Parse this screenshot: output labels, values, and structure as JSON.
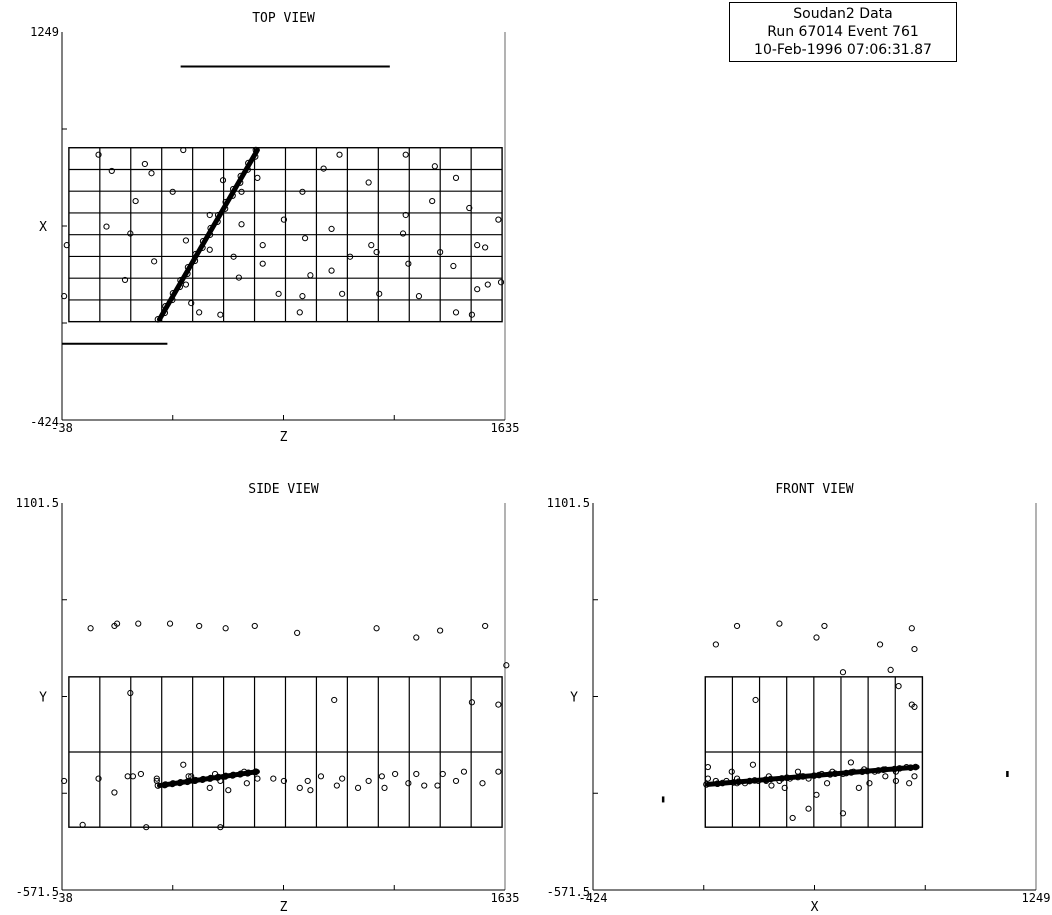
{
  "info": {
    "line1": "Soudan2 Data",
    "line2": "Run 67014 Event 761",
    "line3": "10-Feb-1996 07:06:31.87"
  },
  "colors": {
    "ink": "#000000",
    "background": "#ffffff"
  },
  "chart_data": [
    {
      "type": "scatter",
      "title": "TOP VIEW",
      "xlabel": "Z",
      "ylabel": "X",
      "xlim": [
        -38,
        1635
      ],
      "ylim": [
        -424,
        1249
      ],
      "x_tick_labels": [
        "-38",
        "1635"
      ],
      "y_tick_labels": [
        "-424",
        "1249"
      ],
      "grid": "detector modules 14 columns x 8 rows",
      "track": {
        "from": [
          330,
          10
        ],
        "to": [
          700,
          740
        ]
      },
      "scale_bars": [
        {
          "from": [
            410,
            1100
          ],
          "to": [
            1200,
            1100
          ]
        },
        {
          "from": [
            -38,
            -95
          ],
          "to": [
            360,
            -95
          ]
        }
      ],
      "hits": [
        [
          -30,
          110
        ],
        [
          100,
          720
        ],
        [
          150,
          650
        ],
        [
          275,
          680
        ],
        [
          300,
          640
        ],
        [
          380,
          560
        ],
        [
          240,
          520
        ],
        [
          130,
          410
        ],
        [
          220,
          380
        ],
        [
          430,
          350
        ],
        [
          520,
          310
        ],
        [
          610,
          280
        ],
        [
          720,
          330
        ],
        [
          880,
          360
        ],
        [
          980,
          400
        ],
        [
          1130,
          330
        ],
        [
          1250,
          380
        ],
        [
          1390,
          300
        ],
        [
          1530,
          330
        ],
        [
          1530,
          140
        ],
        [
          1570,
          160
        ],
        [
          1620,
          170
        ],
        [
          1500,
          490
        ],
        [
          1360,
          520
        ],
        [
          1260,
          460
        ],
        [
          1120,
          600
        ],
        [
          1010,
          720
        ],
        [
          1260,
          720
        ],
        [
          1370,
          670
        ],
        [
          1450,
          620
        ],
        [
          560,
          30
        ],
        [
          780,
          120
        ],
        [
          860,
          40
        ],
        [
          900,
          200
        ],
        [
          1020,
          120
        ],
        [
          1160,
          120
        ],
        [
          1310,
          110
        ],
        [
          1450,
          40
        ],
        [
          1510,
          30
        ],
        [
          950,
          660
        ],
        [
          870,
          560
        ],
        [
          800,
          440
        ],
        [
          640,
          420
        ],
        [
          570,
          610
        ],
        [
          520,
          460
        ],
        [
          630,
          190
        ],
        [
          720,
          250
        ],
        [
          1610,
          440
        ],
        [
          1560,
          320
        ],
        [
          1440,
          240
        ],
        [
          1270,
          250
        ],
        [
          1150,
          300
        ],
        [
          980,
          220
        ],
        [
          640,
          560
        ],
        [
          430,
          160
        ],
        [
          450,
          80
        ],
        [
          -20,
          330
        ],
        [
          200,
          180
        ],
        [
          310,
          260
        ],
        [
          870,
          110
        ],
        [
          1050,
          280
        ],
        [
          480,
          40
        ],
        [
          700,
          620
        ],
        [
          420,
          740
        ]
      ]
    },
    {
      "type": "scatter",
      "title": "SIDE VIEW",
      "xlabel": "Z",
      "ylabel": "Y",
      "xlim": [
        -38,
        1635
      ],
      "ylim": [
        -571.5,
        1101.5
      ],
      "x_tick_labels": [
        "-38",
        "1635"
      ],
      "y_tick_labels": [
        "-571.5",
        "1101.5"
      ],
      "grid": "detector modules 14 columns x 2 rows",
      "track": {
        "from": [
          330,
          -120
        ],
        "to": [
          700,
          -60
        ]
      },
      "hits": [
        [
          -30,
          -100
        ],
        [
          40,
          -290
        ],
        [
          160,
          -150
        ],
        [
          210,
          -80
        ],
        [
          220,
          280
        ],
        [
          230,
          -80
        ],
        [
          260,
          -70
        ],
        [
          320,
          -90
        ],
        [
          100,
          -90
        ],
        [
          440,
          -80
        ],
        [
          520,
          -130
        ],
        [
          560,
          -100
        ],
        [
          590,
          -140
        ],
        [
          660,
          -110
        ],
        [
          700,
          -90
        ],
        [
          760,
          -90
        ],
        [
          800,
          -100
        ],
        [
          860,
          -130
        ],
        [
          890,
          -100
        ],
        [
          940,
          -80
        ],
        [
          1020,
          -90
        ],
        [
          1080,
          -130
        ],
        [
          1120,
          -100
        ],
        [
          1170,
          -80
        ],
        [
          1220,
          -70
        ],
        [
          1270,
          -110
        ],
        [
          1330,
          -120
        ],
        [
          1400,
          -70
        ],
        [
          1450,
          -100
        ],
        [
          1480,
          -60
        ],
        [
          1550,
          -110
        ],
        [
          1610,
          -60
        ],
        [
          1610,
          230
        ],
        [
          1640,
          400
        ],
        [
          1560,
          570
        ],
        [
          1510,
          240
        ],
        [
          1300,
          520
        ],
        [
          1390,
          550
        ],
        [
          1150,
          560
        ],
        [
          990,
          250
        ],
        [
          850,
          540
        ],
        [
          690,
          570
        ],
        [
          580,
          560
        ],
        [
          480,
          570
        ],
        [
          370,
          580
        ],
        [
          250,
          580
        ],
        [
          160,
          570
        ],
        [
          70,
          560
        ],
        [
          170,
          580
        ],
        [
          420,
          -30
        ],
        [
          540,
          -70
        ],
        [
          650,
          -60
        ],
        [
          320,
          -100
        ],
        [
          900,
          -140
        ],
        [
          1180,
          -130
        ],
        [
          1300,
          -70
        ],
        [
          280,
          -300
        ],
        [
          560,
          -300
        ],
        [
          450,
          -80
        ],
        [
          1000,
          -120
        ],
        [
          1380,
          -120
        ]
      ]
    },
    {
      "type": "scatter",
      "title": "FRONT VIEW",
      "xlabel": "X",
      "ylabel": "Y",
      "xlim": [
        -424,
        1249
      ],
      "ylim": [
        -571.5,
        1101.5
      ],
      "x_tick_labels": [
        "-424",
        "1249"
      ],
      "y_tick_labels": [
        "-571.5",
        "1101.5"
      ],
      "grid": "detector modules 8 columns x 2 rows",
      "track": {
        "from": [
          10,
          -115
        ],
        "to": [
          800,
          -40
        ]
      },
      "markers": [
        [
          -160,
          -180
        ],
        [
          1140,
          -70
        ]
      ],
      "hits": [
        [
          10,
          -90
        ],
        [
          40,
          -100
        ],
        [
          80,
          -100
        ],
        [
          120,
          -90
        ],
        [
          150,
          -110
        ],
        [
          200,
          -100
        ],
        [
          240,
          -80
        ],
        [
          280,
          -100
        ],
        [
          320,
          -90
        ],
        [
          360,
          -80
        ],
        [
          390,
          -90
        ],
        [
          440,
          -70
        ],
        [
          480,
          -60
        ],
        [
          520,
          -70
        ],
        [
          560,
          -60
        ],
        [
          600,
          -50
        ],
        [
          640,
          -60
        ],
        [
          680,
          -50
        ],
        [
          720,
          -60
        ],
        [
          760,
          -40
        ],
        [
          790,
          -80
        ],
        [
          40,
          490
        ],
        [
          120,
          570
        ],
        [
          190,
          250
        ],
        [
          280,
          580
        ],
        [
          420,
          520
        ],
        [
          450,
          570
        ],
        [
          520,
          370
        ],
        [
          580,
          -130
        ],
        [
          660,
          490
        ],
        [
          700,
          380
        ],
        [
          780,
          560
        ],
        [
          790,
          470
        ],
        [
          780,
          230
        ],
        [
          790,
          220
        ],
        [
          120,
          -110
        ],
        [
          180,
          -30
        ],
        [
          300,
          -130
        ],
        [
          420,
          -160
        ],
        [
          350,
          -60
        ],
        [
          620,
          -110
        ],
        [
          720,
          -100
        ],
        [
          10,
          -40
        ],
        [
          100,
          -60
        ],
        [
          250,
          -120
        ],
        [
          390,
          -220
        ],
        [
          520,
          -240
        ],
        [
          680,
          -80
        ],
        [
          770,
          -110
        ],
        [
          230,
          -100
        ],
        [
          460,
          -110
        ],
        [
          330,
          -260
        ],
        [
          550,
          -20
        ],
        [
          730,
          310
        ]
      ]
    }
  ]
}
